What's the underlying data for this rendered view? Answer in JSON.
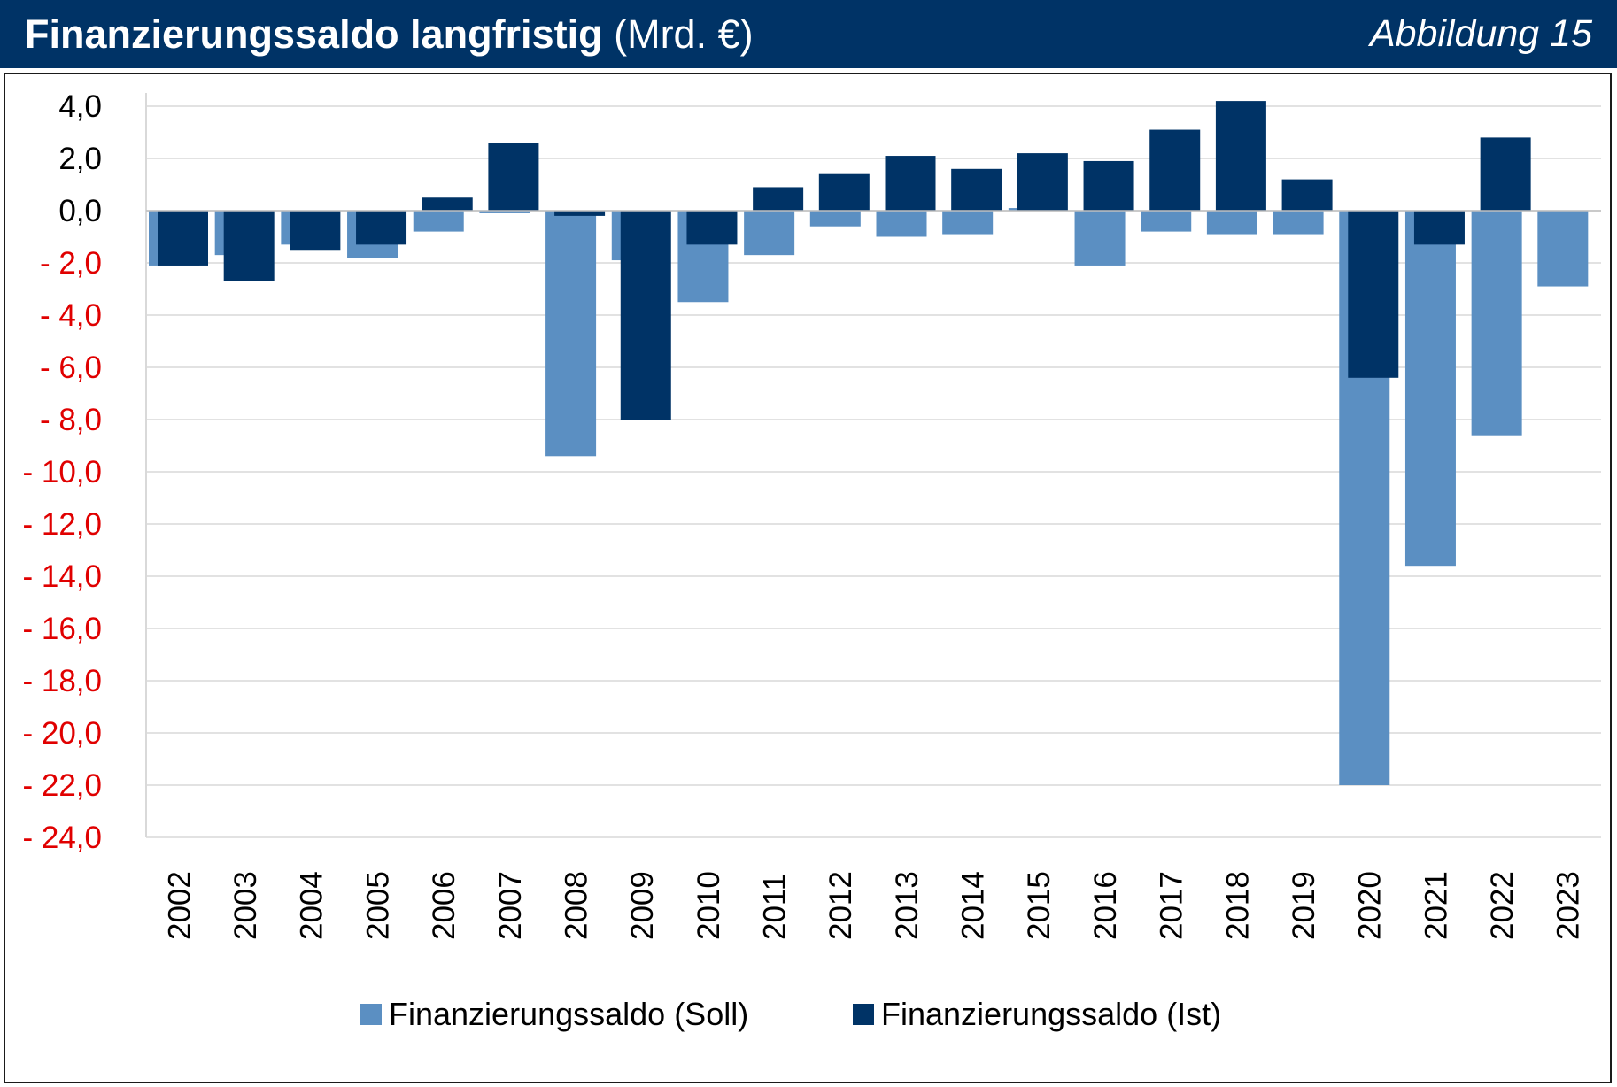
{
  "header": {
    "title_bold": "Finanzierungssaldo langfristig",
    "title_unit": "(Mrd. €)",
    "figure_label": "Abbildung 15",
    "background_color": "#003366"
  },
  "chart_data": {
    "type": "bar",
    "title": "Finanzierungssaldo langfristig (Mrd. €)",
    "xlabel": "",
    "ylabel": "",
    "ylim": [
      -24,
      4
    ],
    "y_ticks": [
      4,
      2,
      0,
      -2,
      -4,
      -6,
      -8,
      -10,
      -12,
      -14,
      -16,
      -18,
      -20,
      -22,
      -24
    ],
    "y_tick_labels": [
      "4,0",
      "2,0",
      "0,0",
      "- 2,0",
      "- 4,0",
      "- 6,0",
      "- 8,0",
      "- 10,0",
      "- 12,0",
      "- 14,0",
      "- 16,0",
      "- 18,0",
      "- 20,0",
      "- 22,0",
      "- 24,0"
    ],
    "y_tick_color_positive": "#000000",
    "y_tick_color_negative": "#e00000",
    "grid": true,
    "legend_position": "bottom",
    "categories": [
      "2002",
      "2003",
      "2004",
      "2005",
      "2006",
      "2007",
      "2008",
      "2009",
      "2010",
      "2011",
      "2012",
      "2013",
      "2014",
      "2015",
      "2016",
      "2017",
      "2018",
      "2019",
      "2020",
      "2021",
      "2022",
      "2023"
    ],
    "series": [
      {
        "name": "Finanzierungssaldo (Soll)",
        "color": "#5b8fc2",
        "values": [
          -2.1,
          -1.7,
          -1.3,
          -1.8,
          -0.8,
          -0.1,
          -9.4,
          -1.9,
          -3.5,
          -1.7,
          -0.6,
          -1.0,
          -0.9,
          0.1,
          -2.1,
          -0.8,
          -0.9,
          -0.9,
          -22.0,
          -13.6,
          -8.6,
          -2.9
        ]
      },
      {
        "name": "Finanzierungssaldo (Ist)",
        "color": "#003366",
        "values": [
          -2.1,
          -2.7,
          -1.5,
          -1.3,
          0.5,
          2.6,
          -0.2,
          -8.0,
          -1.3,
          0.9,
          1.4,
          2.1,
          1.6,
          2.2,
          1.9,
          3.1,
          4.2,
          1.2,
          -6.4,
          -1.3,
          2.8,
          null
        ]
      }
    ]
  }
}
